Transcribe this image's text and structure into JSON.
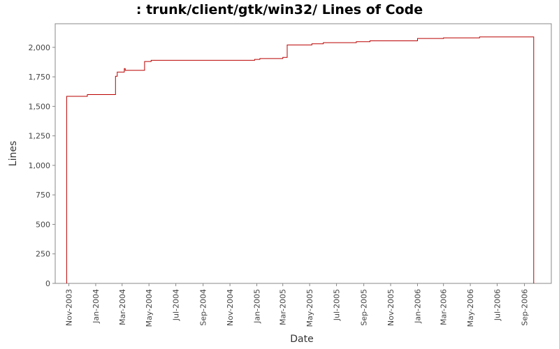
{
  "chart_data": {
    "type": "line",
    "title": ": trunk/client/gtk/win32/ Lines of Code",
    "xlabel": "Date",
    "ylabel": "Lines",
    "xlim": [
      "2003-10-01",
      "2006-11-01"
    ],
    "ylim": [
      0,
      2200
    ],
    "yticks": [
      0,
      250,
      500,
      750,
      1000,
      1250,
      1500,
      1750,
      2000
    ],
    "ytick_labels": [
      "0",
      "250",
      "500",
      "750",
      "1,000",
      "1,250",
      "1,500",
      "1,750",
      "2,000"
    ],
    "xticks": [
      "2003-11-01",
      "2004-01-01",
      "2004-03-01",
      "2004-05-01",
      "2004-07-01",
      "2004-09-01",
      "2004-11-01",
      "2005-01-01",
      "2005-03-01",
      "2005-05-01",
      "2005-07-01",
      "2005-09-01",
      "2005-11-01",
      "2006-01-01",
      "2006-03-01",
      "2006-05-01",
      "2006-07-01",
      "2006-09-01"
    ],
    "xtick_labels": [
      "Nov-2003",
      "Jan-2004",
      "Mar-2004",
      "May-2004",
      "Jul-2004",
      "Sep-2004",
      "Nov-2004",
      "Jan-2005",
      "Mar-2005",
      "May-2005",
      "Jul-2005",
      "Sep-2005",
      "Nov-2005",
      "Jan-2006",
      "Mar-2006",
      "May-2006",
      "Jul-2006",
      "Sep-2006"
    ],
    "grid": false,
    "line_color": "#bb0000",
    "series": [
      {
        "step": true,
        "points": [
          [
            "2003-10-27",
            0
          ],
          [
            "2003-10-27",
            1585
          ],
          [
            "2003-12-13",
            1600
          ],
          [
            "2004-02-15",
            1755
          ],
          [
            "2004-02-19",
            1790
          ],
          [
            "2004-03-06",
            1820
          ],
          [
            "2004-03-08",
            1805
          ],
          [
            "2004-04-21",
            1880
          ],
          [
            "2004-05-06",
            1890
          ],
          [
            "2004-12-27",
            1898
          ],
          [
            "2005-01-08",
            1905
          ],
          [
            "2005-03-01",
            1915
          ],
          [
            "2005-03-11",
            2020
          ],
          [
            "2005-05-06",
            2030
          ],
          [
            "2005-06-01",
            2040
          ],
          [
            "2005-08-15",
            2048
          ],
          [
            "2005-09-15",
            2055
          ],
          [
            "2006-01-01",
            2075
          ],
          [
            "2006-03-01",
            2080
          ],
          [
            "2006-05-22",
            2088
          ],
          [
            "2006-09-22",
            2088
          ],
          [
            "2006-09-22",
            0
          ]
        ]
      }
    ]
  }
}
